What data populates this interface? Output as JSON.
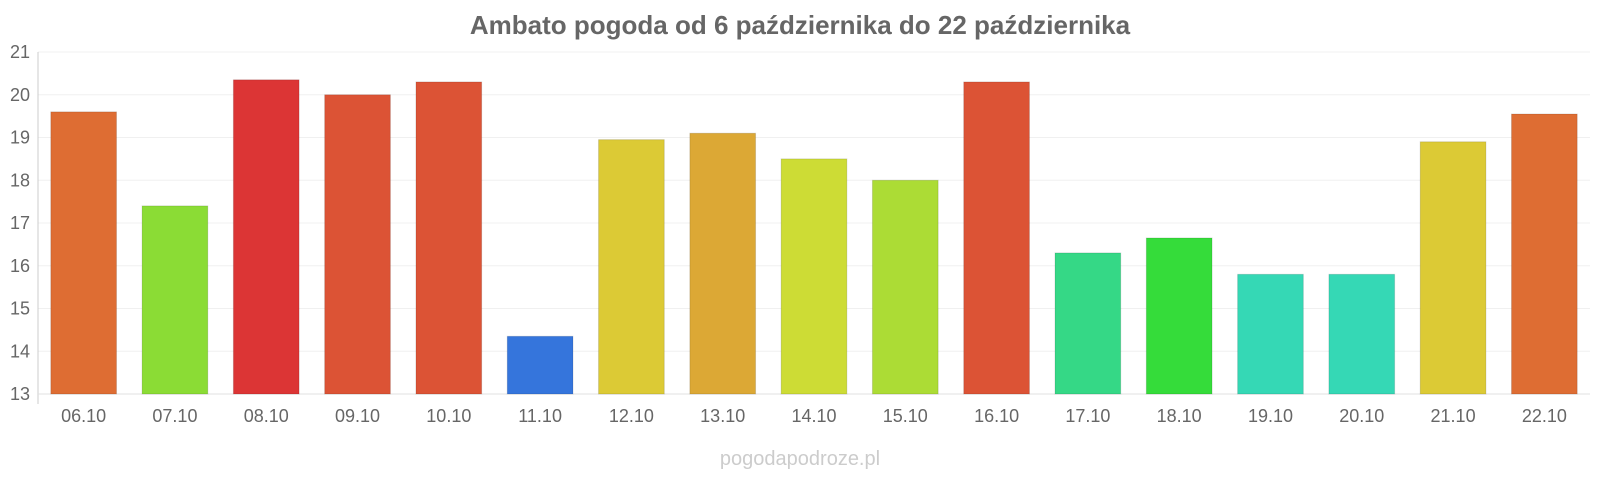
{
  "chart_data": {
    "type": "bar",
    "title": "Ambato pogoda od 6 października do 22 października",
    "categories": [
      "06.10",
      "07.10",
      "08.10",
      "09.10",
      "10.10",
      "11.10",
      "12.10",
      "13.10",
      "14.10",
      "15.10",
      "16.10",
      "17.10",
      "18.10",
      "19.10",
      "20.10",
      "21.10",
      "22.10"
    ],
    "values": [
      19.6,
      17.4,
      20.35,
      20.0,
      20.3,
      14.35,
      18.95,
      19.1,
      18.5,
      18.0,
      20.3,
      16.3,
      16.65,
      15.8,
      15.8,
      18.9,
      19.55
    ],
    "colors": [
      "#de6d33",
      "#8bdc35",
      "#dc3535",
      "#dc5335",
      "#dc5335",
      "#3575dc",
      "#dcca35",
      "#dca835",
      "#cddc35",
      "#acdc35",
      "#dc5335",
      "#35d886",
      "#35dc3a",
      "#35d8b5",
      "#35d8b5",
      "#dcca35",
      "#de6d33"
    ],
    "ylim": [
      13,
      21
    ],
    "yticks": [
      13,
      14,
      15,
      16,
      17,
      18,
      19,
      20,
      21
    ],
    "grid": true,
    "xlabel": "",
    "ylabel": ""
  },
  "watermark": "pogodapodroze.pl"
}
